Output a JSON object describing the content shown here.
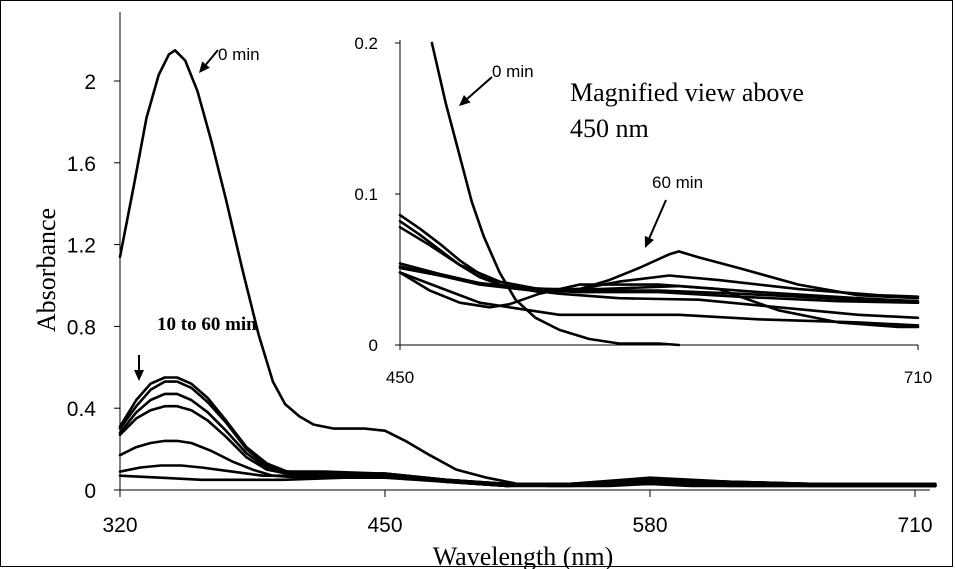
{
  "chart_data": [
    {
      "type": "line",
      "xlabel": "Wavelength (nm)",
      "ylabel": "Absorbance",
      "xlim": [
        320,
        720
      ],
      "ylim": [
        0,
        2.2
      ],
      "xticks": [
        320,
        450,
        580,
        710
      ],
      "yticks": [
        0,
        0.4,
        0.8,
        1.2,
        1.6,
        2
      ],
      "ytick_labels": [
        "0",
        "0.4",
        "0.8",
        "1.2",
        "1.6",
        "2"
      ],
      "grid": false,
      "annotations": [
        {
          "text": "0 min"
        },
        {
          "text": "10 to 60 min"
        }
      ],
      "series": [
        {
          "values": [
            [
              320,
              1.14
            ],
            [
              327,
              1.5
            ],
            [
              333,
              1.82
            ],
            [
              339,
              2.03
            ],
            [
              344,
              2.13
            ],
            [
              347,
              2.15
            ],
            [
              352,
              2.1
            ],
            [
              358,
              1.95
            ],
            [
              365,
              1.7
            ],
            [
              372,
              1.42
            ],
            [
              380,
              1.08
            ],
            [
              388,
              0.76
            ],
            [
              395,
              0.53
            ],
            [
              401,
              0.42
            ],
            [
              408,
              0.36
            ],
            [
              415,
              0.32
            ],
            [
              425,
              0.3
            ],
            [
              440,
              0.3
            ],
            [
              450,
              0.29
            ],
            [
              460,
              0.24
            ],
            [
              472,
              0.17
            ],
            [
              485,
              0.1
            ],
            [
              500,
              0.06
            ],
            [
              515,
              0.03
            ],
            [
              530,
              0.02
            ],
            [
              560,
              0.02
            ],
            [
              580,
              0.03
            ],
            [
              600,
              0.02
            ],
            [
              640,
              0.02
            ],
            [
              680,
              0.02
            ],
            [
              720,
              0.02
            ]
          ]
        },
        {
          "values": [
            [
              320,
              0.31
            ],
            [
              328,
              0.44
            ],
            [
              335,
              0.52
            ],
            [
              342,
              0.55
            ],
            [
              348,
              0.55
            ],
            [
              355,
              0.52
            ],
            [
              363,
              0.45
            ],
            [
              372,
              0.34
            ],
            [
              382,
              0.21
            ],
            [
              392,
              0.13
            ],
            [
              402,
              0.09
            ],
            [
              420,
              0.08
            ],
            [
              450,
              0.07
            ],
            [
              480,
              0.05
            ],
            [
              510,
              0.02
            ],
            [
              540,
              0.03
            ],
            [
              580,
              0.06
            ],
            [
              620,
              0.04
            ],
            [
              660,
              0.03
            ],
            [
              720,
              0.03
            ]
          ]
        },
        {
          "values": [
            [
              320,
              0.3
            ],
            [
              328,
              0.41
            ],
            [
              335,
              0.49
            ],
            [
              342,
              0.53
            ],
            [
              348,
              0.53
            ],
            [
              355,
              0.5
            ],
            [
              363,
              0.43
            ],
            [
              372,
              0.33
            ],
            [
              382,
              0.2
            ],
            [
              392,
              0.12
            ],
            [
              402,
              0.09
            ],
            [
              420,
              0.08
            ],
            [
              450,
              0.08
            ],
            [
              480,
              0.05
            ],
            [
              510,
              0.03
            ],
            [
              540,
              0.03
            ],
            [
              580,
              0.05
            ],
            [
              620,
              0.04
            ],
            [
              660,
              0.03
            ],
            [
              720,
              0.03
            ]
          ]
        },
        {
          "values": [
            [
              320,
              0.28
            ],
            [
              328,
              0.38
            ],
            [
              335,
              0.44
            ],
            [
              342,
              0.47
            ],
            [
              348,
              0.47
            ],
            [
              355,
              0.44
            ],
            [
              363,
              0.38
            ],
            [
              372,
              0.29
            ],
            [
              382,
              0.18
            ],
            [
              392,
              0.11
            ],
            [
              402,
              0.09
            ],
            [
              420,
              0.09
            ],
            [
              450,
              0.08
            ],
            [
              480,
              0.05
            ],
            [
              510,
              0.03
            ],
            [
              540,
              0.03
            ],
            [
              580,
              0.05
            ],
            [
              620,
              0.04
            ],
            [
              660,
              0.03
            ],
            [
              720,
              0.02
            ]
          ]
        },
        {
          "values": [
            [
              320,
              0.27
            ],
            [
              328,
              0.35
            ],
            [
              335,
              0.39
            ],
            [
              342,
              0.41
            ],
            [
              348,
              0.41
            ],
            [
              355,
              0.39
            ],
            [
              363,
              0.34
            ],
            [
              372,
              0.26
            ],
            [
              382,
              0.16
            ],
            [
              392,
              0.1
            ],
            [
              402,
              0.08
            ],
            [
              420,
              0.08
            ],
            [
              450,
              0.08
            ],
            [
              480,
              0.05
            ],
            [
              510,
              0.03
            ],
            [
              540,
              0.03
            ],
            [
              580,
              0.04
            ],
            [
              620,
              0.03
            ],
            [
              660,
              0.03
            ],
            [
              720,
              0.02
            ]
          ]
        },
        {
          "values": [
            [
              320,
              0.17
            ],
            [
              328,
              0.21
            ],
            [
              335,
              0.23
            ],
            [
              342,
              0.24
            ],
            [
              348,
              0.24
            ],
            [
              355,
              0.23
            ],
            [
              365,
              0.19
            ],
            [
              375,
              0.14
            ],
            [
              385,
              0.1
            ],
            [
              395,
              0.07
            ],
            [
              410,
              0.06
            ],
            [
              430,
              0.07
            ],
            [
              450,
              0.07
            ],
            [
              480,
              0.04
            ],
            [
              510,
              0.02
            ],
            [
              540,
              0.03
            ],
            [
              580,
              0.04
            ],
            [
              620,
              0.03
            ],
            [
              660,
              0.02
            ],
            [
              720,
              0.02
            ]
          ]
        },
        {
          "values": [
            [
              320,
              0.09
            ],
            [
              330,
              0.11
            ],
            [
              340,
              0.12
            ],
            [
              350,
              0.12
            ],
            [
              360,
              0.11
            ],
            [
              375,
              0.09
            ],
            [
              390,
              0.07
            ],
            [
              410,
              0.07
            ],
            [
              430,
              0.07
            ],
            [
              450,
              0.07
            ],
            [
              480,
              0.04
            ],
            [
              510,
              0.02
            ],
            [
              540,
              0.03
            ],
            [
              580,
              0.04
            ],
            [
              620,
              0.03
            ],
            [
              720,
              0.02
            ]
          ]
        },
        {
          "values": [
            [
              320,
              0.07
            ],
            [
              340,
              0.06
            ],
            [
              360,
              0.05
            ],
            [
              380,
              0.05
            ],
            [
              400,
              0.05
            ],
            [
              430,
              0.06
            ],
            [
              450,
              0.06
            ],
            [
              480,
              0.04
            ],
            [
              510,
              0.02
            ],
            [
              540,
              0.02
            ],
            [
              580,
              0.03
            ],
            [
              620,
              0.02
            ],
            [
              720,
              0.02
            ]
          ]
        }
      ]
    },
    {
      "type": "line",
      "title": "Magnified view above 450 nm",
      "xlim": [
        450,
        720
      ],
      "ylim": [
        0,
        0.2
      ],
      "xticks": [
        450,
        710
      ],
      "yticks": [
        0,
        0.1,
        0.2
      ],
      "grid": false,
      "annotations": [
        {
          "text": "0 min"
        },
        {
          "text": "60 min"
        }
      ],
      "series": [
        {
          "values": [
            [
              466,
              0.2
            ],
            [
              473,
              0.16
            ],
            [
              480,
              0.125
            ],
            [
              486,
              0.095
            ],
            [
              492,
              0.072
            ],
            [
              500,
              0.048
            ],
            [
              508,
              0.03
            ],
            [
              518,
              0.018
            ],
            [
              530,
              0.01
            ],
            [
              545,
              0.004
            ],
            [
              560,
              0.001
            ],
            [
              580,
              0.001
            ],
            [
              590,
              0.0
            ]
          ]
        },
        {
          "values": [
            [
              450,
              0.086
            ],
            [
              460,
              0.077
            ],
            [
              470,
              0.067
            ],
            [
              480,
              0.056
            ],
            [
              490,
              0.047
            ],
            [
              500,
              0.04
            ],
            [
              520,
              0.035
            ],
            [
              540,
              0.037
            ],
            [
              555,
              0.043
            ],
            [
              570,
              0.051
            ],
            [
              585,
              0.06
            ],
            [
              590,
              0.062
            ],
            [
              600,
              0.058
            ],
            [
              620,
              0.051
            ],
            [
              650,
              0.04
            ],
            [
              680,
              0.033
            ],
            [
              720,
              0.031
            ]
          ]
        },
        {
          "values": [
            [
              450,
              0.082
            ],
            [
              460,
              0.073
            ],
            [
              470,
              0.063
            ],
            [
              480,
              0.053
            ],
            [
              490,
              0.045
            ],
            [
              500,
              0.04
            ],
            [
              520,
              0.036
            ],
            [
              540,
              0.037
            ],
            [
              560,
              0.042
            ],
            [
              585,
              0.046
            ],
            [
              610,
              0.043
            ],
            [
              650,
              0.037
            ],
            [
              690,
              0.033
            ],
            [
              720,
              0.032
            ]
          ]
        },
        {
          "values": [
            [
              450,
              0.078
            ],
            [
              465,
              0.066
            ],
            [
              480,
              0.053
            ],
            [
              500,
              0.042
            ],
            [
              520,
              0.037
            ],
            [
              550,
              0.037
            ],
            [
              590,
              0.039
            ],
            [
              630,
              0.035
            ],
            [
              680,
              0.031
            ],
            [
              720,
              0.029
            ]
          ]
        },
        {
          "values": [
            [
              450,
              0.054
            ],
            [
              470,
              0.047
            ],
            [
              490,
              0.041
            ],
            [
              510,
              0.037
            ],
            [
              540,
              0.035
            ],
            [
              580,
              0.035
            ],
            [
              620,
              0.032
            ],
            [
              670,
              0.029
            ],
            [
              720,
              0.028
            ]
          ]
        },
        {
          "values": [
            [
              450,
              0.052
            ],
            [
              470,
              0.046
            ],
            [
              490,
              0.041
            ],
            [
              510,
              0.038
            ],
            [
              540,
              0.036
            ],
            [
              580,
              0.036
            ],
            [
              620,
              0.034
            ],
            [
              680,
              0.03
            ],
            [
              720,
              0.028
            ]
          ]
        },
        {
          "values": [
            [
              450,
              0.051
            ],
            [
              470,
              0.046
            ],
            [
              490,
              0.04
            ],
            [
              510,
              0.037
            ],
            [
              530,
              0.034
            ],
            [
              560,
              0.031
            ],
            [
              600,
              0.03
            ],
            [
              640,
              0.025
            ],
            [
              680,
              0.02
            ],
            [
              720,
              0.018
            ]
          ]
        },
        {
          "values": [
            [
              450,
              0.048
            ],
            [
              465,
              0.036
            ],
            [
              480,
              0.028
            ],
            [
              495,
              0.025
            ],
            [
              505,
              0.027
            ],
            [
              520,
              0.034
            ],
            [
              540,
              0.04
            ],
            [
              580,
              0.04
            ],
            [
              610,
              0.037
            ],
            [
              640,
              0.023
            ],
            [
              670,
              0.015
            ],
            [
              700,
              0.012
            ],
            [
              720,
              0.012
            ]
          ]
        },
        {
          "values": [
            [
              450,
              0.048
            ],
            [
              470,
              0.038
            ],
            [
              490,
              0.028
            ],
            [
              510,
              0.024
            ],
            [
              530,
              0.02
            ],
            [
              560,
              0.02
            ],
            [
              590,
              0.02
            ],
            [
              630,
              0.017
            ],
            [
              680,
              0.015
            ],
            [
              720,
              0.013
            ]
          ]
        }
      ]
    }
  ]
}
